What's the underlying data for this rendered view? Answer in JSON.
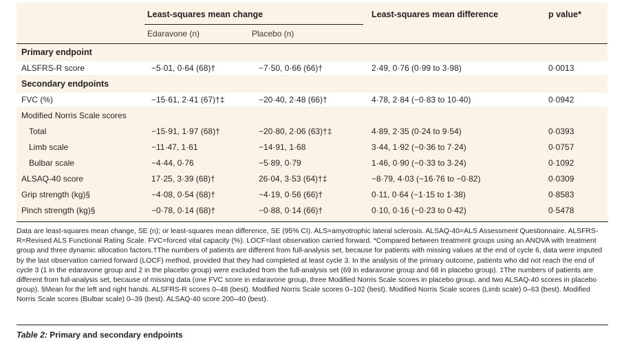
{
  "header": {
    "ls_mean_change": "Least-squares mean change",
    "edaravone": "Edaravone (n)",
    "placebo": "Placebo (n)",
    "ls_mean_difference": "Least-squares mean difference",
    "p_value": "p value*"
  },
  "rows": [
    {
      "label": "Primary endpoint",
      "type": "section"
    },
    {
      "label": "ALSFRS-R score",
      "edaravone": "−5·01, 0·64 (68)†",
      "placebo": "−7·50, 0·66 (66)†",
      "difference": "2·49, 0·76 (0·99 to 3·98)",
      "p": "0·0013"
    },
    {
      "label": "Secondary endpoints",
      "type": "section"
    },
    {
      "label": "FVC (%)",
      "edaravone": "−15·61, 2·41 (67)†‡",
      "placebo": "−20·40, 2·48 (66)†",
      "difference": "4·78, 2·84 (−0·83 to 10·40)",
      "p": "0·0942"
    },
    {
      "label": "Modified Norris Scale scores",
      "type": "group"
    },
    {
      "label": "Total",
      "indent": true,
      "edaravone": "−15·91, 1·97 (68)†",
      "placebo": "−20·80, 2·06 (63)†‡",
      "difference": "4·89, 2·35 (0·24 to 9·54)",
      "p": "0·0393"
    },
    {
      "label": "Limb scale",
      "indent": true,
      "edaravone": "−11·47, 1·61",
      "placebo": "−14·91, 1·68",
      "difference": "3·44, 1·92 (−0·36 to 7·24)",
      "p": "0·0757"
    },
    {
      "label": "Bulbar scale",
      "indent": true,
      "edaravone": "−4·44, 0·76",
      "placebo": "−5·89, 0·79",
      "difference": "1·46, 0·90 (−0·33 to 3·24)",
      "p": "0·1092"
    },
    {
      "label": "ALSAQ-40 score",
      "edaravone": "17·25, 3·39 (68)†",
      "placebo": "26·04, 3·53 (64)†‡",
      "difference": "−8·79, 4·03 (−16·76 to −0·82)",
      "p": "0·0309"
    },
    {
      "label": "Grip strength (kg)§",
      "edaravone": "−4·08, 0·54 (68)†",
      "placebo": "−4·19, 0·56 (66)†",
      "difference": "0·11, 0·64 (−1·15 to 1·38)",
      "p": "0·8583"
    },
    {
      "label": "Pinch strength (kg)§",
      "edaravone": "−0·78, 0·14 (68)†",
      "placebo": "−0·88, 0·14 (66)†",
      "difference": "0·10, 0·16 (−0·23 to 0·42)",
      "p": "0·5478"
    }
  ],
  "footnote": "Data are least-squares mean change, SE (n); or least-squares mean difference, SE (95% CI). ALS=amyotrophic lateral sclerosis. ALSAQ-40=ALS Assessment Questionnaire. ALSFRS-R=Revised ALS Functional Rating Scale. FVC=forced vital capacity (%). LOCF=last observation carried forward. *Compared between treatment groups using an ANOVA with treatment group and three dynamic allocation factors.†The numbers of patients are different from full-analysis set, because for patients with missing values at the end of cycle 6, data were imputed by the last observation carried forward (LOCF) method, provided that they had completed at least cycle 3. In the analysis of the primary outcome, patients who did not reach the end of cycle 3 (1 in the edaravone group and 2 in the placebo group) were excluded from the full-analysis set (69 in edaravone group and 68 in placebo group). ‡The numbers of patients are different from full-analysis set, because of missing data (one FVC score in edaravone group, three Modified Norris Scale scores in placebo group, and two ALSAQ-40 scores in placebo group). §Mean for the left and right hands. ALSFRS-R scores 0–48 (best). Modified Norris Scale scores 0–102 (best). Modified Norris Scale scores (Limb scale) 0–63 (best). Modified Norris Scale scores (Bulbar scale) 0–39 (best). ALSAQ-40 score 200–40 (best).",
  "caption": {
    "table_label": "Table 2:",
    "title": "Primary and secondary endpoints"
  }
}
